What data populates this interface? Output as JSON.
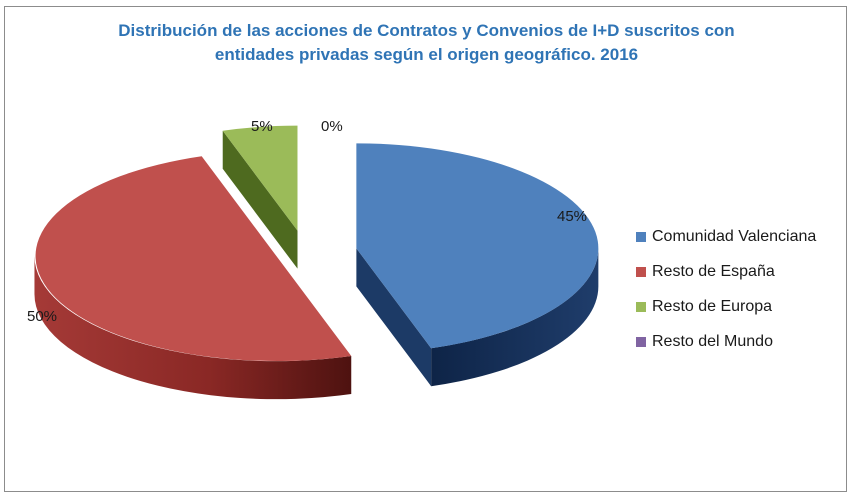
{
  "chart_data": {
    "type": "pie",
    "title": "Distribución de las acciones de Contratos y Convenios de I+D suscritos con entidades privadas según el origen geográfico. 2016",
    "title_lines": [
      "Distribución de las acciones de Contratos y Convenios de I+D suscritos con",
      "entidades privadas según el origen geográfico. 2016"
    ],
    "categories": [
      "Comunidad Valenciana",
      "Resto de España",
      "Resto de Europa",
      "Resto del Mundo"
    ],
    "values": [
      45,
      50,
      5,
      0
    ],
    "data_labels": [
      "45%",
      "50%",
      "5%",
      "0%"
    ],
    "unit": "%",
    "colors": [
      "#4f81bd",
      "#c0504d",
      "#9bbb59",
      "#8064a2"
    ],
    "style": "3d-exploded",
    "legend_position": "right"
  }
}
